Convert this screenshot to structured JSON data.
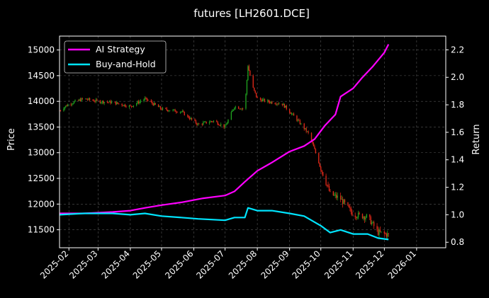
{
  "colors": {
    "background": "#000000",
    "text": "#ffffff",
    "grid": "#555555",
    "up": "#1f9e1f",
    "down": "#d62718",
    "ai": "#ff00ff",
    "bh": "#00e5ff"
  },
  "chart_data": {
    "type": "line",
    "title": "futures [LH2601.DCE]",
    "ylabel_left": "Price",
    "ylabel_right": "Return",
    "grid": true,
    "legend_position": "top-left",
    "x_range": [
      "2025-01-23",
      "2026-01-29"
    ],
    "x_ticks": [
      "2025-02",
      "2025-03",
      "2025-04",
      "2025-05",
      "2025-06",
      "2025-07",
      "2025-08",
      "2025-09",
      "2025-10",
      "2025-11",
      "2025-12",
      "2026-01"
    ],
    "y_left_range": [
      11150,
      15270
    ],
    "y_left_ticks": [
      11500,
      12000,
      12500,
      13000,
      13500,
      14000,
      14500,
      15000
    ],
    "y_right_range": [
      0.76,
      2.3
    ],
    "y_right_ticks": [
      0.8,
      1.0,
      1.2,
      1.4,
      1.6,
      1.8,
      2.0,
      2.2
    ],
    "price_anchors": [
      [
        "2025-01-23",
        13820
      ],
      [
        "2025-02-01",
        13950
      ],
      [
        "2025-02-15",
        14050
      ],
      [
        "2025-03-01",
        14000
      ],
      [
        "2025-03-15",
        13980
      ],
      [
        "2025-04-01",
        13900
      ],
      [
        "2025-04-15",
        14050
      ],
      [
        "2025-05-01",
        13850
      ],
      [
        "2025-05-20",
        13800
      ],
      [
        "2025-06-05",
        13550
      ],
      [
        "2025-06-20",
        13620
      ],
      [
        "2025-07-01",
        13500
      ],
      [
        "2025-07-10",
        13900
      ],
      [
        "2025-07-20",
        13850
      ],
      [
        "2025-07-23",
        14700
      ],
      [
        "2025-07-27",
        14300
      ],
      [
        "2025-08-01",
        14050
      ],
      [
        "2025-08-10",
        14000
      ],
      [
        "2025-08-25",
        13950
      ],
      [
        "2025-09-01",
        13800
      ],
      [
        "2025-09-10",
        13600
      ],
      [
        "2025-09-20",
        13350
      ],
      [
        "2025-10-01",
        12700
      ],
      [
        "2025-10-10",
        12200
      ],
      [
        "2025-10-20",
        12100
      ],
      [
        "2025-11-01",
        11800
      ],
      [
        "2025-11-15",
        11750
      ],
      [
        "2025-11-25",
        11450
      ],
      [
        "2025-12-05",
        11400
      ]
    ],
    "series": [
      {
        "name": "AI Strategy",
        "color": "#ff00ff",
        "points": [
          [
            "2025-01-23",
            1.01
          ],
          [
            "2025-02-15",
            1.01
          ],
          [
            "2025-03-15",
            1.02
          ],
          [
            "2025-04-01",
            1.03
          ],
          [
            "2025-04-15",
            1.05
          ],
          [
            "2025-05-01",
            1.07
          ],
          [
            "2025-05-20",
            1.09
          ],
          [
            "2025-06-10",
            1.12
          ],
          [
            "2025-07-01",
            1.14
          ],
          [
            "2025-07-10",
            1.17
          ],
          [
            "2025-07-20",
            1.24
          ],
          [
            "2025-08-01",
            1.32
          ],
          [
            "2025-08-15",
            1.38
          ],
          [
            "2025-09-01",
            1.46
          ],
          [
            "2025-09-15",
            1.5
          ],
          [
            "2025-09-25",
            1.55
          ],
          [
            "2025-10-05",
            1.65
          ],
          [
            "2025-10-15",
            1.73
          ],
          [
            "2025-10-20",
            1.86
          ],
          [
            "2025-11-01",
            1.92
          ],
          [
            "2025-11-10",
            2.0
          ],
          [
            "2025-11-20",
            2.08
          ],
          [
            "2025-12-01",
            2.18
          ],
          [
            "2025-12-05",
            2.24
          ]
        ]
      },
      {
        "name": "Buy-and-Hold",
        "color": "#00e5ff",
        "points": [
          [
            "2025-01-23",
            1.0
          ],
          [
            "2025-02-15",
            1.01
          ],
          [
            "2025-03-01",
            1.01
          ],
          [
            "2025-03-15",
            1.01
          ],
          [
            "2025-04-01",
            1.0
          ],
          [
            "2025-04-15",
            1.01
          ],
          [
            "2025-05-01",
            0.99
          ],
          [
            "2025-05-20",
            0.98
          ],
          [
            "2025-06-05",
            0.97
          ],
          [
            "2025-07-01",
            0.96
          ],
          [
            "2025-07-10",
            0.98
          ],
          [
            "2025-07-20",
            0.98
          ],
          [
            "2025-07-23",
            1.05
          ],
          [
            "2025-08-01",
            1.03
          ],
          [
            "2025-08-15",
            1.03
          ],
          [
            "2025-09-01",
            1.01
          ],
          [
            "2025-09-15",
            0.99
          ],
          [
            "2025-10-01",
            0.92
          ],
          [
            "2025-10-10",
            0.87
          ],
          [
            "2025-10-20",
            0.89
          ],
          [
            "2025-11-01",
            0.86
          ],
          [
            "2025-11-15",
            0.86
          ],
          [
            "2025-11-25",
            0.83
          ],
          [
            "2025-12-05",
            0.82
          ]
        ]
      }
    ]
  }
}
